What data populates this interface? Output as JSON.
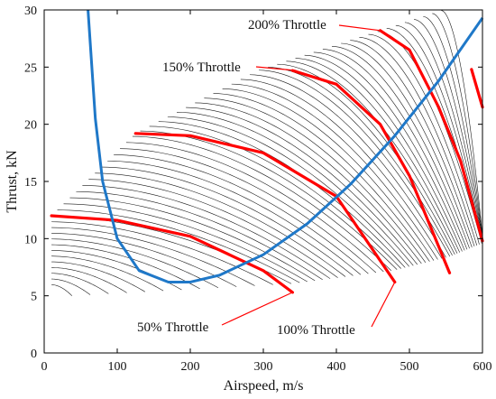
{
  "chart_data": {
    "type": "line",
    "xlabel": "Airspeed,    m/s",
    "ylabel": "Thrust,   kN",
    "xlim": [
      0,
      600
    ],
    "ylim": [
      0,
      30
    ],
    "x_ticks": [
      0,
      100,
      200,
      300,
      400,
      500,
      600
    ],
    "y_ticks": [
      0,
      5,
      10,
      15,
      20,
      25,
      30
    ],
    "grid": false,
    "colors": {
      "family": "#1a1a1a",
      "throttle": "#ff0000",
      "drag": "#1f78c8",
      "annotation": "#ff0000",
      "frame": "#000000"
    },
    "family_curves": {
      "description_levels_min": 1,
      "count": 60,
      "level_min": 0.05,
      "level_max": 2.25
    },
    "throttle_curves": [
      {
        "level": 0.5,
        "x": [
          10,
          100,
          200,
          300,
          340
        ],
        "y": [
          12.0,
          11.6,
          10.2,
          7.2,
          5.3
        ]
      },
      {
        "level": 1.0,
        "x": [
          125,
          200,
          300,
          400,
          480
        ],
        "y": [
          19.2,
          19.0,
          17.5,
          13.7,
          6.2
        ]
      },
      {
        "level": 1.5,
        "x": [
          340,
          400,
          460,
          500,
          555
        ],
        "y": [
          24.7,
          23.5,
          20.0,
          15.5,
          7.0
        ]
      },
      {
        "level": 2.0,
        "x": [
          460,
          500,
          540,
          570,
          600
        ],
        "y": [
          28.2,
          26.5,
          21.5,
          16.8,
          9.8
        ]
      },
      {
        "level": 2.25,
        "x": [
          585,
          600
        ],
        "y": [
          24.8,
          21.5
        ]
      }
    ],
    "drag_curve": {
      "x": [
        60,
        70,
        80,
        100,
        130,
        170,
        200,
        240,
        300,
        360,
        420,
        480,
        540,
        600
      ],
      "y": [
        30,
        20.5,
        15.0,
        10.0,
        7.2,
        6.2,
        6.2,
        6.8,
        8.6,
        11.3,
        14.8,
        19.0,
        23.8,
        29.3
      ]
    },
    "annotations": [
      {
        "text": "200% Throttle",
        "anchor": [
          460,
          28.2
        ]
      },
      {
        "text": "150% Throttle",
        "anchor": [
          345,
          24.7
        ]
      },
      {
        "text": "50% Throttle",
        "anchor": [
          340,
          5.3
        ]
      },
      {
        "text": "100% Throttle",
        "anchor": [
          480,
          6.2
        ]
      }
    ]
  }
}
